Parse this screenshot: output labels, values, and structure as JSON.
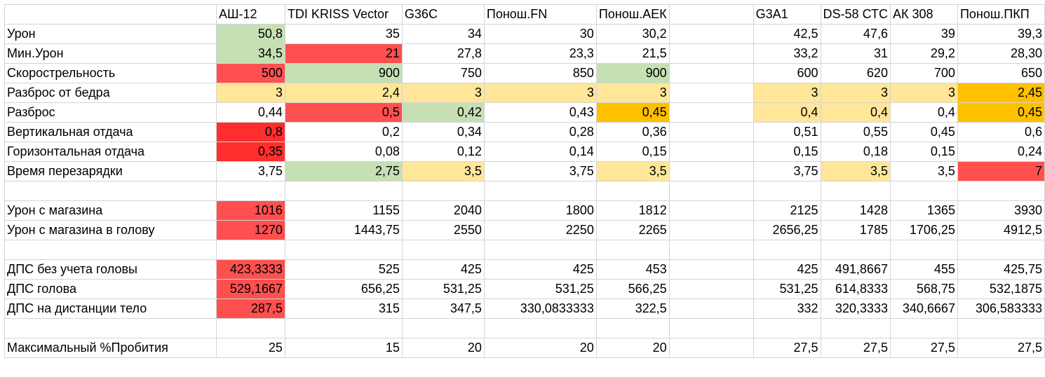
{
  "headers": [
    "",
    "АШ-12",
    "TDI KRISS Vector",
    "G36C",
    "Понош.FN",
    "Понош.АЕК",
    "",
    "G3A1",
    "DS-58 СТС",
    "АК 308",
    "Понош.ПКП"
  ],
  "colors": {
    "green": "#c6e0b4",
    "red": "#ff5050",
    "dark_red": "#ff2e2e",
    "yellow": "#ffe699",
    "orange": "#ffc000"
  },
  "rows": [
    {
      "label": "Урон",
      "values": [
        "50,8",
        "35",
        "34",
        "30",
        "30,2",
        "",
        "42,5",
        "47,6",
        "39",
        "39,3"
      ],
      "colors": [
        "green",
        "",
        "",
        "",
        "",
        "",
        "",
        "",
        "",
        ""
      ]
    },
    {
      "label": "Мин.Урон",
      "values": [
        "34,5",
        "21",
        "27,8",
        "23,3",
        "21,5",
        "",
        "33,2",
        "31",
        "29,2",
        "28,30"
      ],
      "colors": [
        "green",
        "red",
        "",
        "",
        "",
        "",
        "",
        "",
        "",
        ""
      ]
    },
    {
      "label": "Скорострельность",
      "values": [
        "500",
        "900",
        "750",
        "850",
        "900",
        "",
        "600",
        "620",
        "700",
        "650"
      ],
      "colors": [
        "red",
        "green",
        "",
        "",
        "green",
        "",
        "",
        "",
        "",
        ""
      ]
    },
    {
      "label": "Разброс от бедра",
      "values": [
        "3",
        "2,4",
        "3",
        "3",
        "3",
        "",
        "3",
        "3",
        "3",
        "2,45"
      ],
      "colors": [
        "yellow",
        "yellow",
        "yellow",
        "yellow",
        "yellow",
        "",
        "yellow",
        "yellow",
        "yellow",
        "orange"
      ]
    },
    {
      "label": "Разброс",
      "values": [
        "0,44",
        "0,5",
        "0,42",
        "0,43",
        "0,45",
        "",
        "0,4",
        "0,4",
        "0,4",
        "0,45"
      ],
      "colors": [
        "",
        "red",
        "green",
        "",
        "orange",
        "",
        "yellow",
        "yellow",
        "",
        "orange"
      ]
    },
    {
      "label": "Вертикальная отдача",
      "values": [
        "0,8",
        "0,2",
        "0,34",
        "0,28",
        "0,36",
        "",
        "0,51",
        "0,55",
        "0,45",
        "0,6"
      ],
      "colors": [
        "dark_red",
        "",
        "",
        "",
        "",
        "",
        "",
        "",
        "",
        ""
      ]
    },
    {
      "label": "Горизонтальная отдача",
      "values": [
        "0,35",
        "0,08",
        "0,12",
        "0,14",
        "0,15",
        "",
        "0,15",
        "0,18",
        "0,15",
        "0,24"
      ],
      "colors": [
        "dark_red",
        "",
        "",
        "",
        "",
        "",
        "",
        "",
        "",
        ""
      ]
    },
    {
      "label": "Время перезарядки",
      "values": [
        "3,75",
        "2,75",
        "3,5",
        "3,75",
        "3,5",
        "",
        "3,75",
        "3,5",
        "3,5",
        "7"
      ],
      "colors": [
        "",
        "green",
        "yellow",
        "",
        "yellow",
        "",
        "",
        "yellow",
        "",
        "red"
      ]
    },
    {
      "label": "",
      "values": [
        "",
        "",
        "",
        "",
        "",
        "",
        "",
        "",
        "",
        ""
      ],
      "colors": [
        "",
        "",
        "",
        "",
        "",
        "",
        "",
        "",
        "",
        ""
      ]
    },
    {
      "label": "Урон с магазина",
      "values": [
        "1016",
        "1155",
        "2040",
        "1800",
        "1812",
        "",
        "2125",
        "1428",
        "1365",
        "3930"
      ],
      "colors": [
        "red",
        "",
        "",
        "",
        "",
        "",
        "",
        "",
        "",
        ""
      ]
    },
    {
      "label": "Урон с магазина в голову",
      "values": [
        "1270",
        "1443,75",
        "2550",
        "2250",
        "2265",
        "",
        "2656,25",
        "1785",
        "1706,25",
        "4912,5"
      ],
      "colors": [
        "red",
        "",
        "",
        "",
        "",
        "",
        "",
        "",
        "",
        ""
      ]
    },
    {
      "label": "",
      "values": [
        "",
        "",
        "",
        "",
        "",
        "",
        "",
        "",
        "",
        ""
      ],
      "colors": [
        "",
        "",
        "",
        "",
        "",
        "",
        "",
        "",
        "",
        ""
      ]
    },
    {
      "label": "ДПС без учета головы",
      "values": [
        "423,3333",
        "525",
        "425",
        "425",
        "453",
        "",
        "425",
        "491,8667",
        "455",
        "425,75"
      ],
      "colors": [
        "red",
        "",
        "",
        "",
        "",
        "",
        "",
        "",
        "",
        ""
      ]
    },
    {
      "label": "ДПС голова",
      "values": [
        "529,1667",
        "656,25",
        "531,25",
        "531,25",
        "566,25",
        "",
        "531,25",
        "614,8333",
        "568,75",
        "532,1875"
      ],
      "colors": [
        "red",
        "",
        "",
        "",
        "",
        "",
        "",
        "",
        "",
        ""
      ]
    },
    {
      "label": "ДПС на дистанции тело",
      "values": [
        "287,5",
        "315",
        "347,5",
        "330,0833333",
        "322,5",
        "",
        "332",
        "320,3333",
        "340,6667",
        "306,583333"
      ],
      "colors": [
        "red",
        "",
        "",
        "",
        "",
        "",
        "",
        "",
        "",
        ""
      ]
    },
    {
      "label": "",
      "values": [
        "",
        "",
        "",
        "",
        "",
        "",
        "",
        "",
        "",
        ""
      ],
      "colors": [
        "",
        "",
        "",
        "",
        "",
        "",
        "",
        "",
        "",
        ""
      ]
    },
    {
      "label": "Максимальный %Пробития",
      "values": [
        "25",
        "15",
        "20",
        "20",
        "20",
        "",
        "27,5",
        "27,5",
        "27,5",
        "27,5"
      ],
      "colors": [
        "",
        "",
        "",
        "",
        "",
        "",
        "",
        "",
        "",
        ""
      ]
    }
  ]
}
